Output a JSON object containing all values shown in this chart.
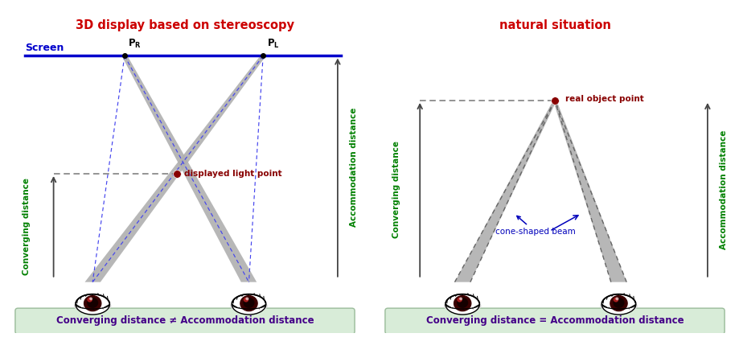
{
  "title_left": "3D display based on stereoscopy",
  "title_right": "natural situation",
  "screen_label": "Screen",
  "left_point_label": "displayed light point",
  "right_point_label": "real object point",
  "conv_dist_label": "Converging distance",
  "accom_dist_label": "Accommodation distance",
  "cone_label": "cone-shaped beam",
  "bottom_left": "Converging distance ≠ Accommodation distance",
  "bottom_right": "Converging distance = Accommodation distance",
  "title_color": "#cc0000",
  "screen_color": "#0000cc",
  "green_color": "#008000",
  "point_color": "#880000",
  "bg_box_color": "#d8ecd8"
}
